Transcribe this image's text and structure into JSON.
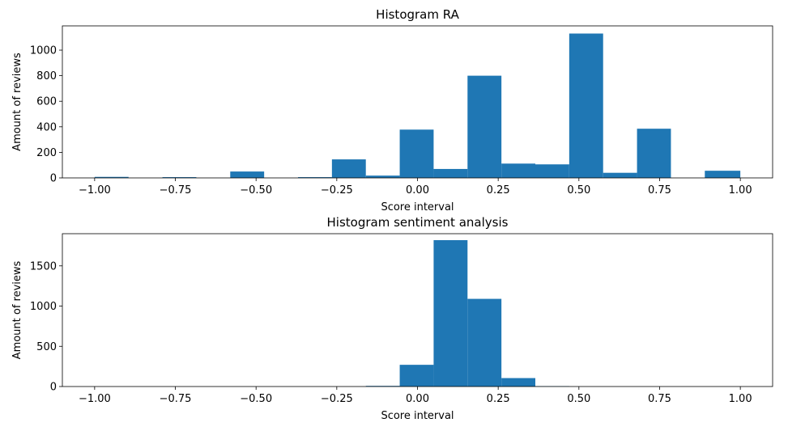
{
  "chart_data": [
    {
      "type": "bar",
      "title": "Histogram RA",
      "xlabel": "Score interval",
      "ylabel": "Amount of reviews",
      "xlim": [
        -1.1,
        1.1
      ],
      "ylim": [
        0,
        1190
      ],
      "xticks": [
        "−1.00",
        "−0.75",
        "−0.50",
        "−0.25",
        "0.00",
        "0.25",
        "0.50",
        "0.75",
        "1.00"
      ],
      "xtick_values": [
        -1,
        -0.75,
        -0.5,
        -0.25,
        0,
        0.25,
        0.5,
        0.75,
        1
      ],
      "yticks": [
        "0",
        "200",
        "400",
        "600",
        "800",
        "1000"
      ],
      "ytick_values": [
        0,
        200,
        400,
        600,
        800,
        1000
      ],
      "bin_edges": [
        -1.0,
        -0.895,
        -0.79,
        -0.685,
        -0.58,
        -0.475,
        -0.37,
        -0.265,
        -0.16,
        -0.055,
        0.05,
        0.155,
        0.26,
        0.365,
        0.47,
        0.575,
        0.68,
        0.785,
        0.89,
        1.0
      ],
      "values": [
        8,
        0,
        6,
        0,
        50,
        0,
        6,
        145,
        18,
        378,
        70,
        800,
        112,
        106,
        1130,
        40,
        385,
        0,
        56
      ],
      "grid": false,
      "color": "#1f77b4"
    },
    {
      "type": "bar",
      "title": "Histogram sentiment analysis",
      "xlabel": "Score interval",
      "ylabel": "Amount of reviews",
      "xlim": [
        -1.1,
        1.1
      ],
      "ylim": [
        0,
        1900
      ],
      "xticks": [
        "−1.00",
        "−0.75",
        "−0.50",
        "−0.25",
        "0.00",
        "0.25",
        "0.50",
        "0.75",
        "1.00"
      ],
      "xtick_values": [
        -1,
        -0.75,
        -0.5,
        -0.25,
        0,
        0.25,
        0.5,
        0.75,
        1
      ],
      "yticks": [
        "0",
        "500",
        "1000",
        "1500"
      ],
      "ytick_values": [
        0,
        500,
        1000,
        1500
      ],
      "bin_edges": [
        -1.0,
        -0.895,
        -0.79,
        -0.685,
        -0.58,
        -0.475,
        -0.37,
        -0.265,
        -0.16,
        -0.055,
        0.05,
        0.155,
        0.26,
        0.365,
        0.47,
        0.575,
        0.68,
        0.785,
        0.89,
        1.0
      ],
      "values": [
        0,
        0,
        0,
        0,
        0,
        0,
        0,
        0,
        8,
        270,
        1820,
        1090,
        105,
        5,
        0,
        0,
        0,
        0,
        0
      ],
      "grid": false,
      "color": "#1f77b4"
    }
  ]
}
